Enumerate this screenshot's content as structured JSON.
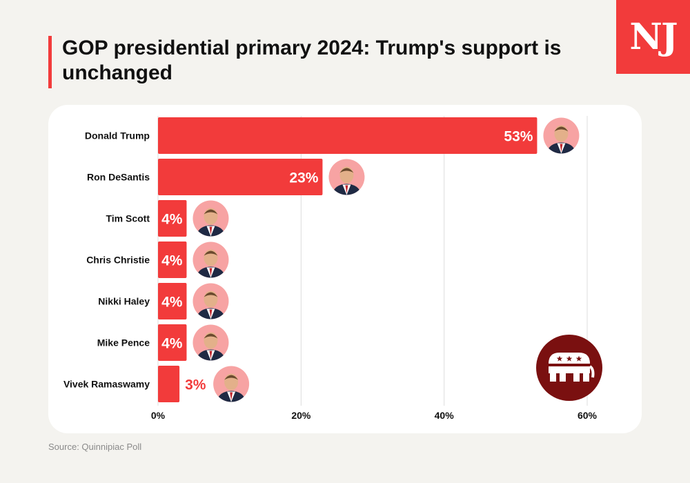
{
  "title": "GOP presidential primary 2024: Trump's support is unchanged",
  "logo_text": "NJ",
  "source": "Source: Quinnipiac Poll",
  "colors": {
    "bar": "#f23b3b",
    "bar_label_inside": "#ffffff",
    "bar_label_outside": "#f23b3b",
    "avatar_bg": "#f7a3a3",
    "emblem_bg": "#7a1010",
    "grid": "#dcdcdc"
  },
  "emblem_icon": "republican-elephant-icon",
  "chart_data": {
    "type": "bar",
    "orientation": "horizontal",
    "categories": [
      "Donald Trump",
      "Ron DeSantis",
      "Tim Scott",
      "Chris Christie",
      "Nikki Haley",
      "Mike Pence",
      "Vivek Ramaswamy"
    ],
    "values": [
      53,
      23,
      4,
      4,
      4,
      4,
      3
    ],
    "value_labels": [
      "53%",
      "23%",
      "4%",
      "4%",
      "4%",
      "4%",
      "3%"
    ],
    "xlim": [
      0,
      60
    ],
    "x_ticks": [
      0,
      20,
      40,
      60
    ],
    "x_tick_labels": [
      "0%",
      "20%",
      "40%",
      "60%"
    ],
    "grid": true,
    "title": "",
    "xlabel": "",
    "ylabel": ""
  }
}
